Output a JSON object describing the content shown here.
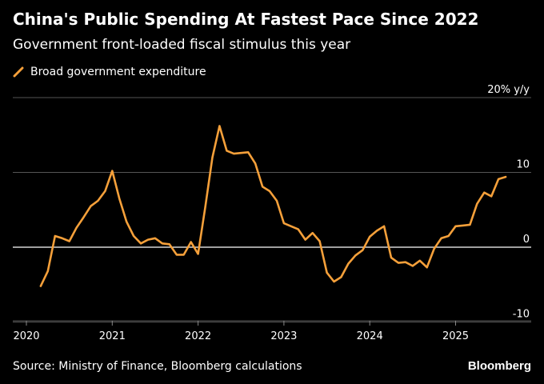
{
  "title": "China's Public Spending At Fastest Pace Since 2022",
  "subtitle": "Government front-loaded fiscal stimulus this year",
  "source": "Source: Ministry of Finance, Bloomberg calculations",
  "brand": "Bloomberg",
  "colors": {
    "background": "#000000",
    "series": "#F5A03A",
    "grid": "#555555",
    "zero_line": "#ffffff"
  },
  "chart_data": {
    "type": "line",
    "title": "China's Public Spending At Fastest Pace Since 2022",
    "subtitle": "Government front-loaded fiscal stimulus this year",
    "ylabel_unit": "y/y",
    "ylim": [
      -10,
      20
    ],
    "yticks": [
      {
        "value": 20,
        "label": "20% y/y"
      },
      {
        "value": 10,
        "label": "10"
      },
      {
        "value": 0,
        "label": "0"
      },
      {
        "value": -10,
        "label": "-10"
      }
    ],
    "xlim": [
      "2020-01",
      "2025-12"
    ],
    "xticks": [
      "2020",
      "2021",
      "2022",
      "2023",
      "2024",
      "2025"
    ],
    "grid": true,
    "legend_position": "top-left",
    "series": [
      {
        "name": "Broad government expenditure",
        "color": "#F5A03A",
        "points": [
          [
            "2020-03",
            -5.2
          ],
          [
            "2020-04",
            -3.2
          ],
          [
            "2020-05",
            1.5
          ],
          [
            "2020-06",
            1.2
          ],
          [
            "2020-07",
            0.8
          ],
          [
            "2020-08",
            2.6
          ],
          [
            "2020-09",
            4.0
          ],
          [
            "2020-10",
            5.5
          ],
          [
            "2020-11",
            6.2
          ],
          [
            "2020-12",
            7.5
          ],
          [
            "2021-01",
            10.2
          ],
          [
            "2021-02",
            6.5
          ],
          [
            "2021-03",
            3.4
          ],
          [
            "2021-04",
            1.5
          ],
          [
            "2021-05",
            0.5
          ],
          [
            "2021-06",
            1.0
          ],
          [
            "2021-07",
            1.2
          ],
          [
            "2021-08",
            0.5
          ],
          [
            "2021-09",
            0.4
          ],
          [
            "2021-10",
            -1.0
          ],
          [
            "2021-11",
            -1.0
          ],
          [
            "2021-12",
            0.7
          ],
          [
            "2022-01",
            -0.9
          ],
          [
            "2022-02",
            5.3
          ],
          [
            "2022-03",
            12.0
          ],
          [
            "2022-04",
            16.2
          ],
          [
            "2022-05",
            12.9
          ],
          [
            "2022-06",
            12.5
          ],
          [
            "2022-07",
            12.6
          ],
          [
            "2022-08",
            12.7
          ],
          [
            "2022-09",
            11.2
          ],
          [
            "2022-10",
            8.1
          ],
          [
            "2022-11",
            7.5
          ],
          [
            "2022-12",
            6.2
          ],
          [
            "2023-01",
            3.2
          ],
          [
            "2023-02",
            2.8
          ],
          [
            "2023-03",
            2.4
          ],
          [
            "2023-04",
            1.0
          ],
          [
            "2023-05",
            1.9
          ],
          [
            "2023-06",
            0.8
          ],
          [
            "2023-07",
            -3.4
          ],
          [
            "2023-08",
            -4.6
          ],
          [
            "2023-09",
            -4.0
          ],
          [
            "2023-10",
            -2.2
          ],
          [
            "2023-11",
            -1.1
          ],
          [
            "2023-12",
            -0.4
          ],
          [
            "2024-01",
            1.4
          ],
          [
            "2024-02",
            2.2
          ],
          [
            "2024-03",
            2.8
          ],
          [
            "2024-04",
            -1.4
          ],
          [
            "2024-05",
            -2.1
          ],
          [
            "2024-06",
            -2.0
          ],
          [
            "2024-07",
            -2.5
          ],
          [
            "2024-08",
            -1.8
          ],
          [
            "2024-09",
            -2.7
          ],
          [
            "2024-10",
            -0.2
          ],
          [
            "2024-11",
            1.2
          ],
          [
            "2024-12",
            1.5
          ],
          [
            "2025-01",
            2.8
          ],
          [
            "2025-02",
            2.9
          ],
          [
            "2025-03",
            3.0
          ],
          [
            "2025-04",
            5.8
          ],
          [
            "2025-05",
            7.3
          ],
          [
            "2025-06",
            6.8
          ],
          [
            "2025-07",
            9.1
          ],
          [
            "2025-08",
            9.4
          ]
        ]
      }
    ]
  }
}
